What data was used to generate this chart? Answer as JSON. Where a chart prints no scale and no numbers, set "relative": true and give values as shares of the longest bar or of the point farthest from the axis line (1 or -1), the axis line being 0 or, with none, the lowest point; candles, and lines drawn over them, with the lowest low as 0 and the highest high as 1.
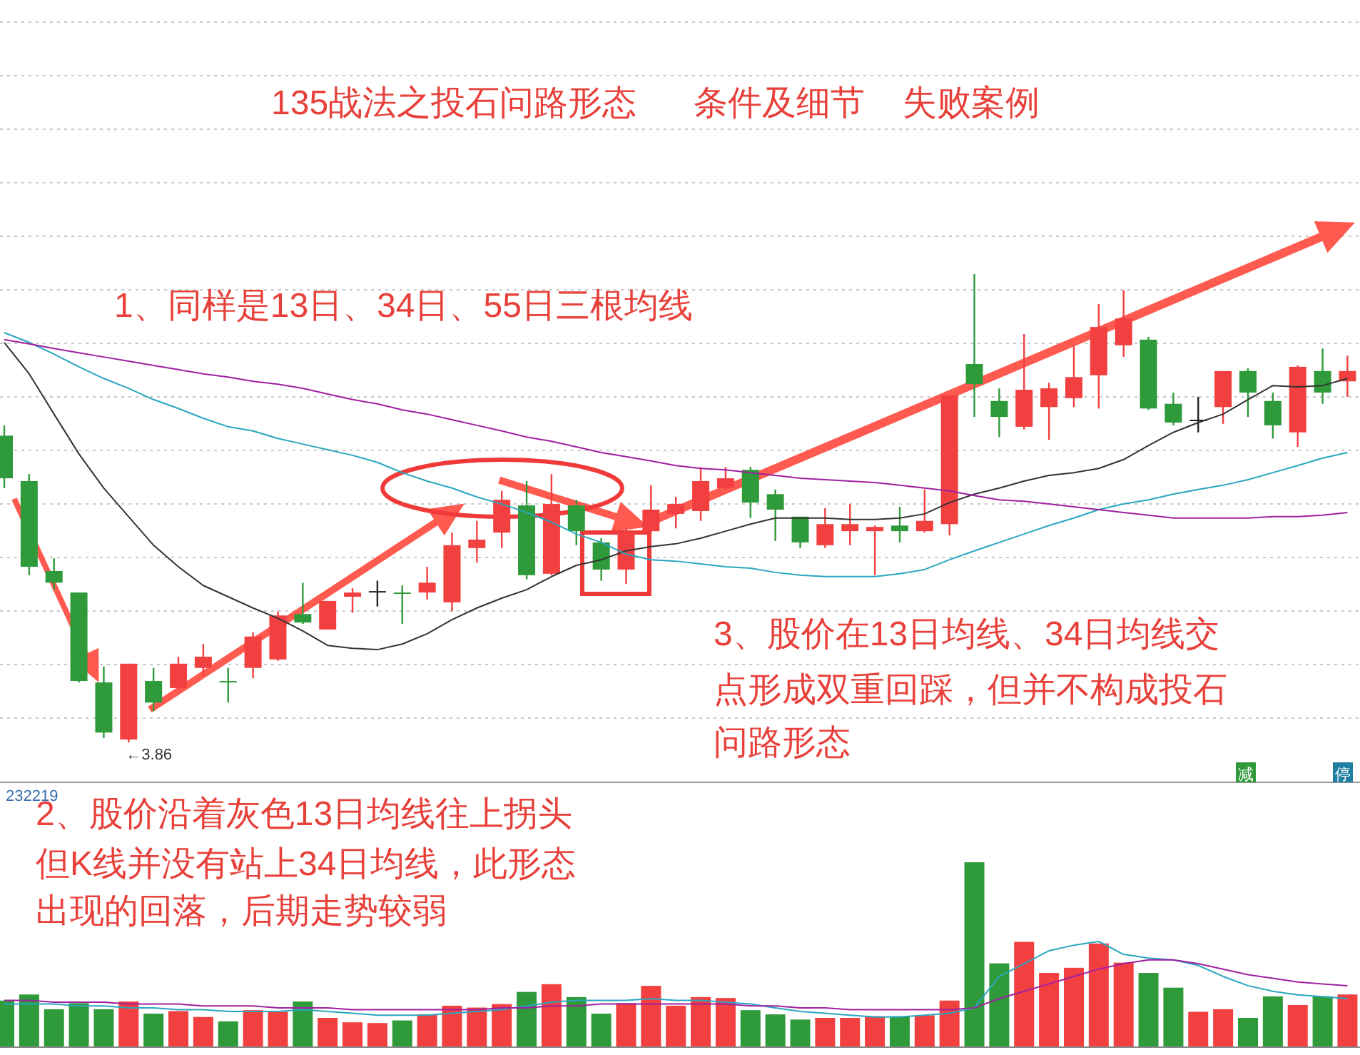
{
  "chart_data": [
    {
      "type": "candlestick",
      "title": "135战法之投石问路形态      条件及细节    失败案例",
      "relative": true,
      "grid": true,
      "categories": [
        null,
        null,
        null,
        null,
        null,
        null,
        null,
        null,
        null,
        null,
        null,
        null,
        null,
        null,
        null,
        null,
        null,
        null,
        null,
        null,
        null,
        null,
        null,
        null,
        null,
        null,
        null,
        null,
        null,
        null,
        null,
        null,
        null,
        null,
        null,
        null,
        null,
        null,
        null,
        null,
        null,
        null,
        null,
        null,
        null,
        null,
        null,
        null,
        null,
        null,
        null,
        null,
        null,
        null,
        null
      ],
      "ohlc": [
        [
          0.655,
          0.677,
          0.543,
          0.564
        ],
        [
          0.558,
          0.573,
          0.357,
          0.375
        ],
        [
          0.366,
          0.393,
          0.326,
          0.341
        ],
        [
          0.32,
          0.32,
          0.128,
          0.131
        ],
        [
          0.128,
          0.162,
          0.009,
          0.021
        ],
        [
          0.006,
          0.168,
          0,
          0.168
        ],
        [
          0.131,
          0.159,
          0.067,
          0.085
        ],
        [
          0.116,
          0.183,
          0.113,
          0.168
        ],
        [
          0.159,
          0.21,
          0.143,
          0.183
        ],
        [
          0.131,
          0.159,
          0.085,
          0.128
        ],
        [
          0.159,
          0.235,
          0.137,
          0.226
        ],
        [
          0.177,
          0.28,
          0.174,
          0.271
        ],
        [
          0.274,
          0.341,
          0.253,
          0.256
        ],
        [
          0.241,
          0.302,
          0.241,
          0.302
        ],
        [
          0.311,
          0.329,
          0.277,
          0.32
        ],
        [
          0.32,
          0.345,
          0.29,
          0.323
        ],
        [
          0.32,
          0.335,
          0.253,
          0.317
        ],
        [
          0.32,
          0.375,
          0.305,
          0.341
        ],
        [
          0.299,
          0.448,
          0.28,
          0.421
        ],
        [
          0.415,
          0.473,
          0.384,
          0.433
        ],
        [
          0.448,
          0.537,
          0.415,
          0.518
        ],
        [
          0.506,
          0.558,
          0.348,
          0.357
        ],
        [
          0.36,
          0.573,
          0.357,
          0.509
        ],
        [
          0.506,
          0.518,
          0.421,
          0.451
        ],
        [
          0.427,
          0.436,
          0.345,
          0.369
        ],
        [
          0.369,
          0.457,
          0.338,
          0.448
        ],
        [
          0.451,
          0.549,
          0.448,
          0.497
        ],
        [
          0.488,
          0.524,
          0.457,
          0.509
        ],
        [
          0.494,
          0.588,
          0.473,
          0.558
        ],
        [
          0.543,
          0.588,
          0.54,
          0.564
        ],
        [
          0.582,
          0.588,
          0.479,
          0.512
        ],
        [
          0.53,
          0.54,
          0.43,
          0.497
        ],
        [
          0.482,
          0.482,
          0.415,
          0.427
        ],
        [
          0.421,
          0.5,
          0.415,
          0.466
        ],
        [
          0.451,
          0.509,
          0.421,
          0.466
        ],
        [
          0.451,
          0.463,
          0.357,
          0.46
        ],
        [
          0.463,
          0.503,
          0.427,
          0.451
        ],
        [
          0.451,
          0.54,
          0.448,
          0.473
        ],
        [
          0.466,
          0.741,
          0.442,
          0.741
        ],
        [
          0.808,
          1,
          0.695,
          0.765
        ],
        [
          0.729,
          0.756,
          0.652,
          0.695
        ],
        [
          0.674,
          0.872,
          0.668,
          0.753
        ],
        [
          0.716,
          0.768,
          0.646,
          0.756
        ],
        [
          0.735,
          0.848,
          0.716,
          0.78
        ],
        [
          0.784,
          0.936,
          0.713,
          0.887
        ],
        [
          0.848,
          0.966,
          0.823,
          0.905
        ],
        [
          0.86,
          0.866,
          0.71,
          0.713
        ],
        [
          0.723,
          0.747,
          0.677,
          0.683
        ],
        [
          0.689,
          0.738,
          0.662,
          0.686
        ],
        [
          0.716,
          0.793,
          0.68,
          0.793
        ],
        [
          0.793,
          0.799,
          0.695,
          0.747
        ],
        [
          0.729,
          0.747,
          0.649,
          0.677
        ],
        [
          0.662,
          0.805,
          0.631,
          0.802
        ],
        [
          0.793,
          0.841,
          0.723,
          0.747
        ],
        [
          0.771,
          0.826,
          0.738,
          0.793
        ]
      ],
      "colors": [
        "#2f9a3a",
        "#2f9a3a",
        "#2f9a3a",
        "#2f9a3a",
        "#2f9a3a",
        "#f23f3f",
        "#2f9a3a",
        "#f23f3f",
        "#f23f3f",
        "#2f9a3a",
        "#f23f3f",
        "#f23f3f",
        "#2f9a3a",
        "#f23f3f",
        "#f23f3f",
        "#222222",
        "#2f9a3a",
        "#f23f3f",
        "#f23f3f",
        "#f23f3f",
        "#f23f3f",
        "#2f9a3a",
        "#f23f3f",
        "#2f9a3a",
        "#2f9a3a",
        "#f23f3f",
        "#f23f3f",
        "#f23f3f",
        "#f23f3f",
        "#f23f3f",
        "#2f9a3a",
        "#2f9a3a",
        "#2f9a3a",
        "#f23f3f",
        "#f23f3f",
        "#f23f3f",
        "#2f9a3a",
        "#f23f3f",
        "#f23f3f",
        "#2f9a3a",
        "#2f9a3a",
        "#f23f3f",
        "#f23f3f",
        "#f23f3f",
        "#f23f3f",
        "#f23f3f",
        "#2f9a3a",
        "#2f9a3a",
        "#222222",
        "#f23f3f",
        "#2f9a3a",
        "#2f9a3a",
        "#f23f3f",
        "#2f9a3a",
        "#f23f3f"
      ],
      "series": [
        {
          "type": "line",
          "color": "#333333",
          "values": [
            0.854,
            0.787,
            0.701,
            0.616,
            0.543,
            0.482,
            0.421,
            0.375,
            0.335,
            0.311,
            0.287,
            0.265,
            0.238,
            0.207,
            0.201,
            0.198,
            0.21,
            0.232,
            0.262,
            0.287,
            0.308,
            0.326,
            0.354,
            0.378,
            0.39,
            0.409,
            0.418,
            0.424,
            0.436,
            0.451,
            0.466,
            0.479,
            0.479,
            0.479,
            0.476,
            0.476,
            0.479,
            0.488,
            0.512,
            0.53,
            0.543,
            0.558,
            0.57,
            0.576,
            0.585,
            0.604,
            0.634,
            0.662,
            0.683,
            0.701,
            0.732,
            0.762,
            0.759,
            0.762,
            0.777
          ]
        },
        {
          "type": "line",
          "color": "#2aa6c0",
          "values": [
            0.875,
            0.854,
            0.829,
            0.802,
            0.777,
            0.756,
            0.732,
            0.713,
            0.692,
            0.674,
            0.665,
            0.649,
            0.637,
            0.625,
            0.613,
            0.598,
            0.576,
            0.558,
            0.543,
            0.524,
            0.509,
            0.491,
            0.47,
            0.445,
            0.427,
            0.402,
            0.39,
            0.387,
            0.381,
            0.375,
            0.372,
            0.363,
            0.357,
            0.354,
            0.354,
            0.354,
            0.36,
            0.369,
            0.39,
            0.409,
            0.427,
            0.445,
            0.463,
            0.479,
            0.497,
            0.509,
            0.518,
            0.53,
            0.54,
            0.549,
            0.561,
            0.576,
            0.591,
            0.607,
            0.619
          ]
        },
        {
          "type": "line",
          "color": "#a020a0",
          "values": [
            0.86,
            0.851,
            0.841,
            0.832,
            0.823,
            0.814,
            0.805,
            0.796,
            0.787,
            0.78,
            0.771,
            0.765,
            0.756,
            0.744,
            0.732,
            0.723,
            0.71,
            0.701,
            0.689,
            0.677,
            0.665,
            0.652,
            0.643,
            0.631,
            0.619,
            0.61,
            0.601,
            0.591,
            0.585,
            0.582,
            0.576,
            0.57,
            0.564,
            0.561,
            0.558,
            0.555,
            0.549,
            0.543,
            0.537,
            0.527,
            0.518,
            0.515,
            0.509,
            0.503,
            0.497,
            0.491,
            0.485,
            0.479,
            0.479,
            0.479,
            0.479,
            0.482,
            0.482,
            0.485,
            0.491
          ]
        }
      ],
      "annotations": [
        "1、同样是13日、34日、55日三根均线",
        "2、股价沿着灰色13日均线往上拐头",
        "但K线并没有站上34日均线，此形态",
        "出现的回落，后期走势较弱",
        "3、股价在13日均线、34日均线交",
        "点形成双重回踩，但并不构成投石",
        "问路形态",
        "←3.86"
      ]
    },
    {
      "type": "bar",
      "relative": true,
      "categories": [
        null,
        null,
        null,
        null,
        null,
        null,
        null,
        null,
        null,
        null,
        null,
        null,
        null,
        null,
        null,
        null,
        null,
        null,
        null,
        null,
        null,
        null,
        null,
        null,
        null,
        null,
        null,
        null,
        null,
        null,
        null,
        null,
        null,
        null,
        null,
        null,
        null,
        null,
        null,
        null,
        null,
        null,
        null,
        null,
        null,
        null,
        null,
        null,
        null,
        null,
        null,
        null,
        null,
        null,
        null
      ],
      "series": [
        {
          "type": "bar",
          "values": [
            0.249,
            0.282,
            0.202,
            0.235,
            0.202,
            0.244,
            0.178,
            0.192,
            0.16,
            0.136,
            0.197,
            0.188,
            0.244,
            0.155,
            0.131,
            0.127,
            0.141,
            0.174,
            0.221,
            0.211,
            0.23,
            0.296,
            0.338,
            0.268,
            0.178,
            0.235,
            0.329,
            0.221,
            0.268,
            0.263,
            0.197,
            0.174,
            0.146,
            0.155,
            0.155,
            0.164,
            0.164,
            0.169,
            0.249,
            1,
            0.451,
            0.568,
            0.399,
            0.427,
            0.559,
            0.455,
            0.399,
            0.319,
            0.188,
            0.202,
            0.155,
            0.272,
            0.225,
            0.272,
            0.282
          ],
          "colors": [
            "#2f9a3a",
            "#2f9a3a",
            "#2f9a3a",
            "#2f9a3a",
            "#2f9a3a",
            "#f23f3f",
            "#2f9a3a",
            "#f23f3f",
            "#f23f3f",
            "#2f9a3a",
            "#f23f3f",
            "#f23f3f",
            "#2f9a3a",
            "#f23f3f",
            "#f23f3f",
            "#f23f3f",
            "#2f9a3a",
            "#f23f3f",
            "#f23f3f",
            "#f23f3f",
            "#f23f3f",
            "#2f9a3a",
            "#f23f3f",
            "#2f9a3a",
            "#2f9a3a",
            "#f23f3f",
            "#f23f3f",
            "#f23f3f",
            "#f23f3f",
            "#f23f3f",
            "#2f9a3a",
            "#2f9a3a",
            "#2f9a3a",
            "#f23f3f",
            "#f23f3f",
            "#f23f3f",
            "#2f9a3a",
            "#f23f3f",
            "#f23f3f",
            "#2f9a3a",
            "#2f9a3a",
            "#f23f3f",
            "#f23f3f",
            "#f23f3f",
            "#f23f3f",
            "#f23f3f",
            "#2f9a3a",
            "#2f9a3a",
            "#f23f3f",
            "#f23f3f",
            "#2f9a3a",
            "#2f9a3a",
            "#f23f3f",
            "#2f9a3a",
            "#f23f3f"
          ]
        }
      ],
      "annotations": [
        "232219",
        "减",
        "停"
      ]
    },
    {
      "type": "line",
      "relative": true,
      "categories": [
        null,
        null,
        null,
        null,
        null,
        null,
        null,
        null,
        null,
        null,
        null,
        null,
        null,
        null,
        null,
        null,
        null,
        null,
        null,
        null,
        null,
        null,
        null,
        null,
        null,
        null,
        null,
        null,
        null,
        null,
        null,
        null,
        null,
        null,
        null,
        null,
        null,
        null,
        null,
        null,
        null,
        null,
        null,
        null,
        null,
        null,
        null,
        null,
        null,
        null,
        null,
        null,
        null,
        null,
        null
      ],
      "series": [
        {
          "color": "#2aa6c0",
          "values": [
            0.404,
            0.404,
            0.404,
            0.386,
            0.386,
            0.368,
            0.368,
            0.351,
            0.351,
            0.333,
            0.333,
            0.333,
            0.351,
            0.333,
            0.316,
            0.298,
            0.298,
            0.298,
            0.316,
            0.333,
            0.351,
            0.386,
            0.421,
            0.439,
            0.439,
            0.439,
            0.456,
            0.439,
            0.439,
            0.421,
            0.404,
            0.368,
            0.333,
            0.316,
            0.298,
            0.281,
            0.281,
            0.298,
            0.316,
            0.368,
            0.667,
            0.789,
            0.912,
            0.965,
            1,
            0.877,
            0.842,
            0.825,
            0.772,
            0.667,
            0.579,
            0.526,
            0.491,
            0.474,
            0.456
          ]
        },
        {
          "color": "#a020a0",
          "values": [
            0.439,
            0.439,
            0.421,
            0.421,
            0.421,
            0.404,
            0.404,
            0.404,
            0.386,
            0.386,
            0.386,
            0.368,
            0.368,
            0.368,
            0.351,
            0.351,
            0.351,
            0.351,
            0.351,
            0.351,
            0.368,
            0.368,
            0.386,
            0.386,
            0.404,
            0.404,
            0.404,
            0.404,
            0.404,
            0.404,
            0.386,
            0.386,
            0.368,
            0.368,
            0.351,
            0.351,
            0.351,
            0.351,
            0.351,
            0.368,
            0.456,
            0.526,
            0.596,
            0.667,
            0.737,
            0.789,
            0.825,
            0.825,
            0.789,
            0.737,
            0.684,
            0.649,
            0.614,
            0.596,
            0.579
          ]
        }
      ]
    }
  ]
}
